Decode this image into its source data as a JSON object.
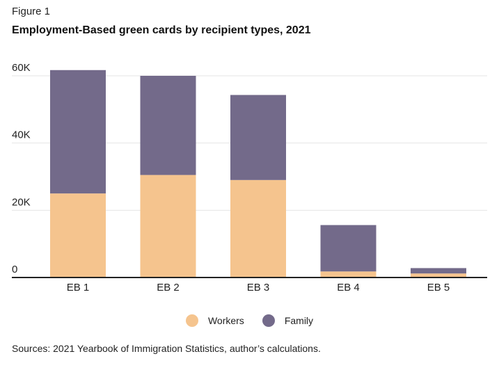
{
  "figure_label": "Figure 1",
  "source_note": "Sources: 2021 Yearbook of Immigration Statistics, author’s calculations.",
  "colors": {
    "workers": "#f5c48e",
    "family": "#736a8a",
    "grid": "#e4e4e4",
    "axis": "#222222"
  },
  "chart_data": {
    "type": "bar",
    "stacked": true,
    "title": "Employment-Based green cards by recipient types, 2021",
    "xlabel": "",
    "ylabel": "",
    "categories": [
      "EB 1",
      "EB 2",
      "EB 3",
      "EB 4",
      "EB 5"
    ],
    "series": [
      {
        "name": "Workers",
        "values": [
          25000,
          30500,
          29000,
          1800,
          1200
        ]
      },
      {
        "name": "Family",
        "values": [
          36700,
          29500,
          25300,
          13800,
          1600
        ]
      }
    ],
    "ylim": [
      0,
      60000
    ],
    "yticks": [
      0,
      20000,
      40000,
      60000
    ],
    "ytick_labels": [
      "0",
      "20K",
      "40K",
      "60K"
    ],
    "grid": true,
    "legend_position": "bottom-center"
  }
}
